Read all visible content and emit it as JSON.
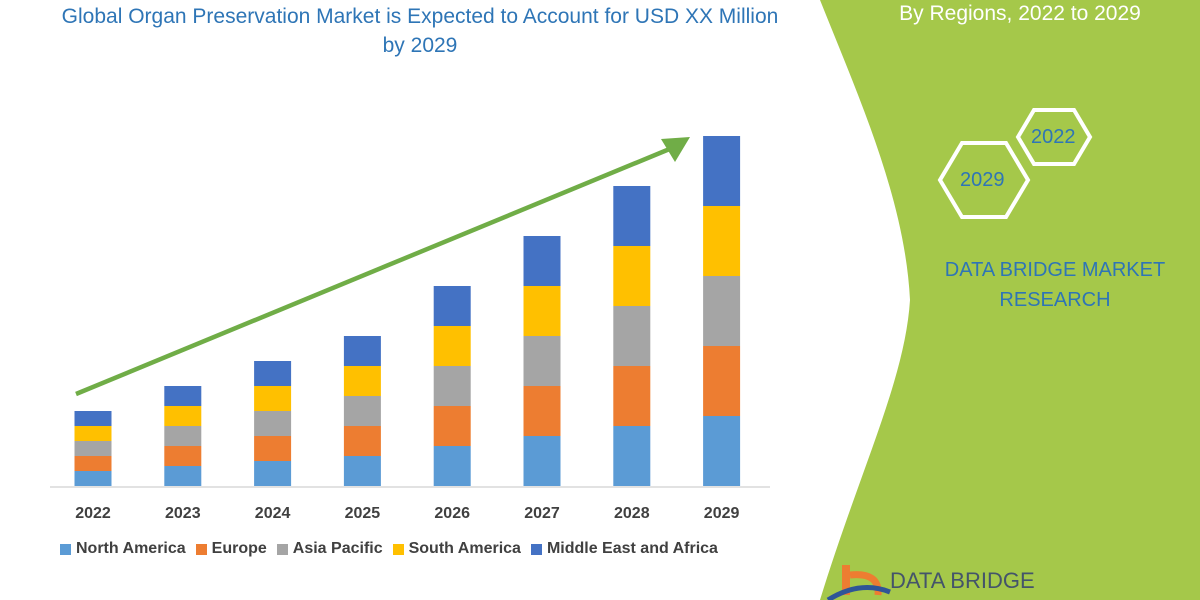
{
  "title": "Global Organ Preservation Market is Expected to Account for USD XX Million by 2029",
  "panel": {
    "subtitle": "By Regions, 2022 to 2029",
    "hex_left": "2029",
    "hex_right": "2022",
    "brand": "DATA BRIDGE MARKET RESEARCH",
    "logo_text": "DATA BRIDGE",
    "color": "#a5c84a"
  },
  "chart_data": {
    "type": "bar",
    "stacked": true,
    "title": "Global Organ Preservation Market is Expected to Account for USD XX Million by 2029",
    "xlabel": "",
    "ylabel": "",
    "y_axis_shown": false,
    "grid": false,
    "legend_position": "bottom",
    "categories": [
      "2022",
      "2023",
      "2024",
      "2025",
      "2026",
      "2027",
      "2028",
      "2029"
    ],
    "series": [
      {
        "name": "North America",
        "color": "#5b9bd5",
        "values": [
          15,
          20,
          25,
          30,
          40,
          50,
          60,
          70
        ]
      },
      {
        "name": "Europe",
        "color": "#ed7d31",
        "values": [
          15,
          20,
          25,
          30,
          40,
          50,
          60,
          70
        ]
      },
      {
        "name": "Asia Pacific",
        "color": "#a5a5a5",
        "values": [
          15,
          20,
          25,
          30,
          40,
          50,
          60,
          70
        ]
      },
      {
        "name": "South America",
        "color": "#ffc000",
        "values": [
          15,
          20,
          25,
          30,
          40,
          50,
          60,
          70
        ]
      },
      {
        "name": "Middle East and Africa",
        "color": "#4472c4",
        "values": [
          15,
          20,
          25,
          30,
          40,
          50,
          60,
          70
        ]
      }
    ],
    "trend_arrow_color": "#70ad47"
  }
}
